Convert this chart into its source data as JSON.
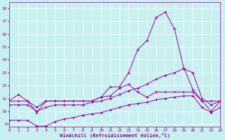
{
  "xlabel": "Windchill (Refroidissement éolien,°C)",
  "background_color": "#c8f0f0",
  "line_color": "#990099",
  "grid_color": "#ffffff",
  "xlim": [
    0,
    23
  ],
  "ylim": [
    8.8,
    18.5
  ],
  "xticks": [
    0,
    1,
    2,
    3,
    4,
    5,
    6,
    7,
    8,
    9,
    10,
    11,
    12,
    13,
    14,
    15,
    16,
    17,
    18,
    19,
    20,
    21,
    22,
    23
  ],
  "yticks": [
    9,
    10,
    11,
    12,
    13,
    14,
    15,
    16,
    17,
    18
  ],
  "series": [
    {
      "x": [
        0,
        1,
        2,
        3,
        4,
        5,
        6,
        7,
        8,
        9,
        10,
        11,
        12,
        13,
        14,
        15,
        16,
        17,
        18,
        19,
        20,
        21,
        22,
        23
      ],
      "y": [
        10.8,
        11.3,
        10.8,
        9.9,
        10.8,
        10.8,
        10.8,
        10.8,
        10.8,
        10.8,
        11.1,
        11.9,
        11.9,
        13.0,
        14.8,
        15.5,
        17.3,
        17.7,
        16.4,
        13.4,
        11.7,
        10.8,
        10.0,
        10.8
      ]
    },
    {
      "x": [
        0,
        1,
        2,
        3,
        4,
        5,
        6,
        7,
        8,
        9,
        10,
        11,
        12,
        13,
        14,
        15,
        16,
        17,
        18,
        19,
        20,
        21,
        22,
        23
      ],
      "y": [
        10.8,
        10.8,
        10.8,
        10.3,
        10.8,
        10.8,
        10.8,
        10.8,
        10.8,
        10.8,
        11.1,
        11.2,
        11.8,
        12.1,
        11.5,
        11.1,
        11.5,
        11.5,
        11.5,
        11.5,
        11.5,
        10.8,
        10.8,
        10.8
      ]
    },
    {
      "x": [
        0,
        1,
        2,
        3,
        4,
        5,
        6,
        7,
        8,
        9,
        10,
        11,
        12,
        13,
        14,
        15,
        16,
        17,
        18,
        19,
        20,
        21,
        22,
        23
      ],
      "y": [
        10.5,
        10.5,
        10.5,
        10.0,
        10.3,
        10.5,
        10.5,
        10.5,
        10.5,
        10.7,
        10.8,
        11.0,
        11.3,
        11.6,
        11.8,
        12.1,
        12.5,
        12.8,
        13.0,
        13.3,
        13.0,
        11.0,
        10.5,
        10.8
      ]
    },
    {
      "x": [
        0,
        1,
        2,
        3,
        4,
        5,
        6,
        7,
        8,
        9,
        10,
        11,
        12,
        13,
        14,
        15,
        16,
        17,
        18,
        19,
        20,
        21,
        22,
        23
      ],
      "y": [
        9.3,
        9.3,
        9.3,
        8.85,
        8.85,
        9.2,
        9.4,
        9.5,
        9.7,
        9.8,
        9.9,
        10.1,
        10.3,
        10.5,
        10.6,
        10.7,
        10.9,
        11.0,
        11.1,
        11.2,
        11.2,
        10.3,
        9.9,
        10.3
      ]
    }
  ]
}
